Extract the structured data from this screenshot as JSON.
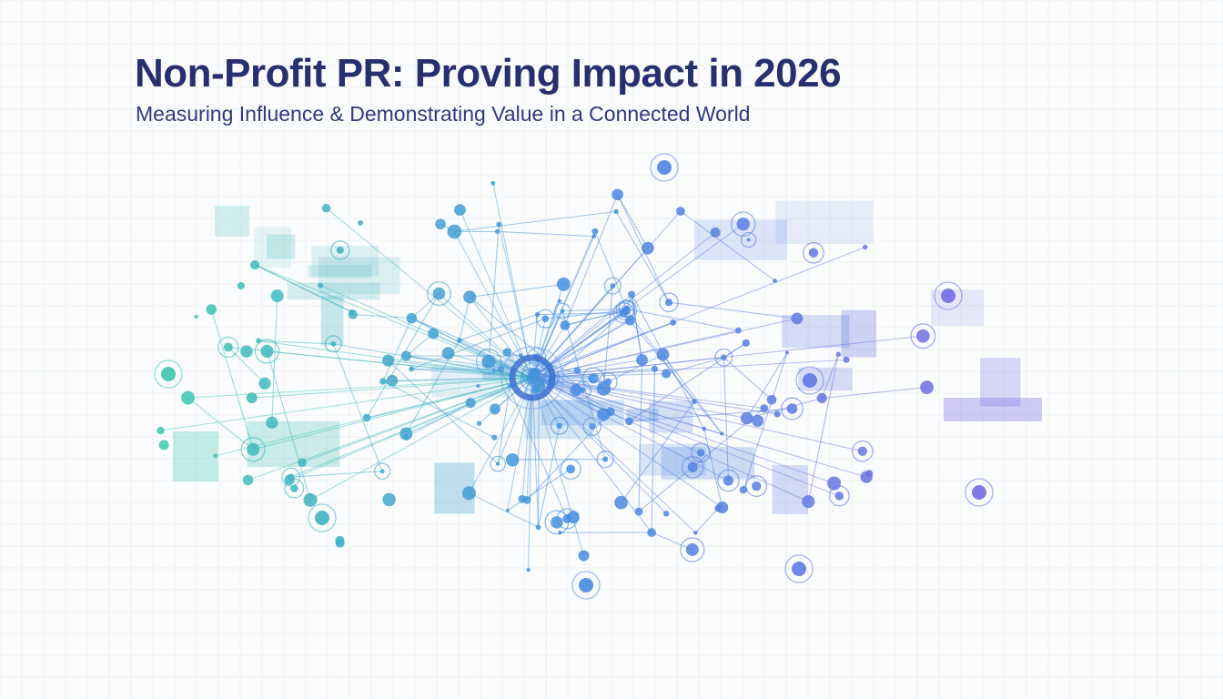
{
  "header": {
    "title": "Non-Profit PR: Proving Impact in 2026",
    "subtitle": "Measuring Influence & Demonstrating Value in a Connected World"
  }
}
